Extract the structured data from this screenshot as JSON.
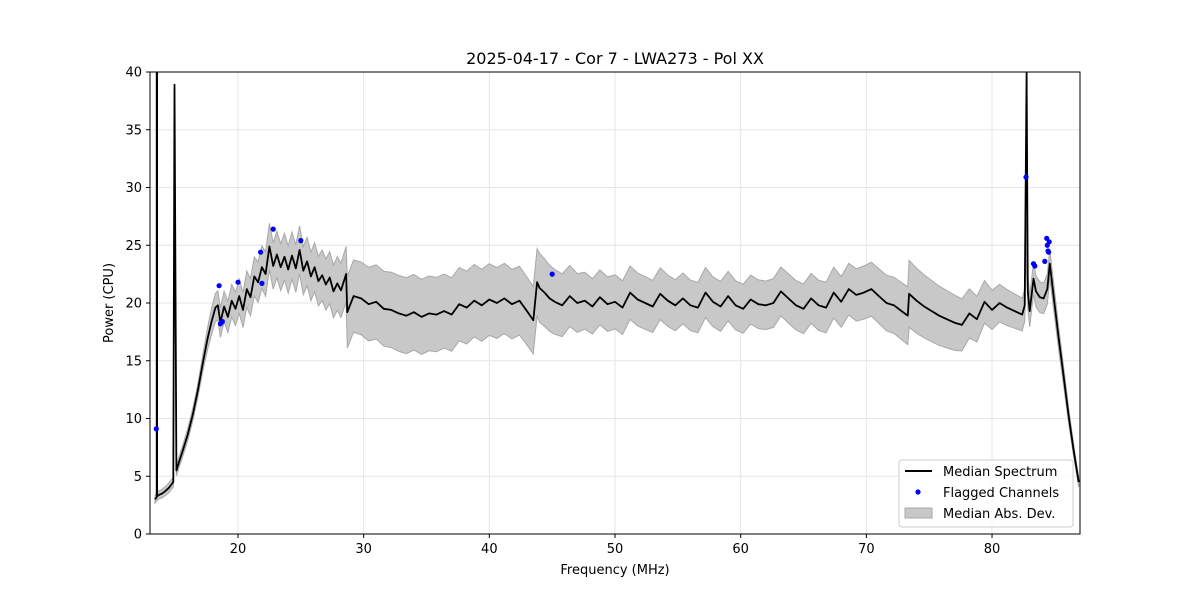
{
  "chart_data": {
    "type": "line",
    "title": "2025-04-17 - Cor 7 - LWA273 - Pol XX",
    "xlabel": "Frequency (MHz)",
    "ylabel": "Power (CPU)",
    "xlim": [
      13.0,
      87.0
    ],
    "ylim": [
      0,
      40
    ],
    "xticks": [
      20,
      30,
      40,
      50,
      60,
      70,
      80
    ],
    "xtick_labels": [
      "20",
      "30",
      "40",
      "50",
      "60",
      "70",
      "80"
    ],
    "yticks": [
      0,
      5,
      10,
      15,
      20,
      25,
      30,
      35,
      40
    ],
    "ytick_labels": [
      "0",
      "5",
      "10",
      "15",
      "20",
      "25",
      "30",
      "35",
      "40"
    ],
    "grid": true,
    "legend_position": "lower-right",
    "legend": [
      "Median Spectrum",
      "Flagged Channels",
      "Median Abs. Dev."
    ],
    "colors": {
      "median": "#000000",
      "flagged": "#0000ff",
      "mad_fill": "#c8c8c8",
      "mad_edge": "#a8a8a8",
      "grid": "#e6e6e6"
    },
    "series": [
      {
        "name": "Median Spectrum",
        "x": [
          13.4,
          13.6,
          13.75,
          13.85,
          13.95,
          14.2,
          14.5,
          14.85,
          14.95,
          15.1,
          15.3,
          15.6,
          16.0,
          16.4,
          16.8,
          17.2,
          17.6,
          17.9,
          18.2,
          18.4,
          18.6,
          18.9,
          19.2,
          19.5,
          19.8,
          20.1,
          20.4,
          20.7,
          21.0,
          21.3,
          21.6,
          21.9,
          22.2,
          22.5,
          22.8,
          23.1,
          23.4,
          23.7,
          24.0,
          24.3,
          24.6,
          24.9,
          25.2,
          25.5,
          25.8,
          26.1,
          26.4,
          26.7,
          27.0,
          27.3,
          27.6,
          27.9,
          28.2,
          28.6,
          28.7,
          29.2,
          29.8,
          30.4,
          31.0,
          31.6,
          32.2,
          32.8,
          33.4,
          34.0,
          34.6,
          35.2,
          35.8,
          36.4,
          37.0,
          37.6,
          38.2,
          38.8,
          39.4,
          40.0,
          40.6,
          41.2,
          41.8,
          42.4,
          43.0,
          43.5,
          43.8,
          44.0,
          44.4,
          44.8,
          45.2,
          45.8,
          46.4,
          47.0,
          47.6,
          48.2,
          48.8,
          49.4,
          50.0,
          50.6,
          51.2,
          51.8,
          52.4,
          53.0,
          53.6,
          54.2,
          54.8,
          55.4,
          56.0,
          56.6,
          57.2,
          57.8,
          58.4,
          59.0,
          59.6,
          60.2,
          60.8,
          61.4,
          62.0,
          62.6,
          63.2,
          63.8,
          64.4,
          65.0,
          65.6,
          66.2,
          66.8,
          67.4,
          68.0,
          68.6,
          69.2,
          69.8,
          70.4,
          71.0,
          71.6,
          72.2,
          72.8,
          73.3,
          73.4,
          74.0,
          74.6,
          75.2,
          75.8,
          76.4,
          77.0,
          77.6,
          78.2,
          78.8,
          79.4,
          80.0,
          80.6,
          81.2,
          81.8,
          82.4,
          82.6,
          82.75,
          82.85,
          83.0,
          83.3,
          83.5,
          83.8,
          84.1,
          84.4,
          84.6,
          84.9,
          85.3,
          85.7,
          86.1,
          86.5,
          86.9
        ],
        "y": [
          3.0,
          3.3,
          3.4,
          3.45,
          3.5,
          3.7,
          4.0,
          4.5,
          38.9,
          5.5,
          6.2,
          7.2,
          8.6,
          10.3,
          12.4,
          14.8,
          17.0,
          18.4,
          19.6,
          19.8,
          18.3,
          19.7,
          18.8,
          20.2,
          19.5,
          20.6,
          19.4,
          21.2,
          20.5,
          22.3,
          21.8,
          23.1,
          22.5,
          24.9,
          23.2,
          24.2,
          23.1,
          24.0,
          22.9,
          24.1,
          23.0,
          24.6,
          22.8,
          23.6,
          22.3,
          23.1,
          21.9,
          22.4,
          21.6,
          22.2,
          21.0,
          21.7,
          21.1,
          22.5,
          19.2,
          20.6,
          20.4,
          19.9,
          20.1,
          19.5,
          19.4,
          19.1,
          18.9,
          19.2,
          18.8,
          19.1,
          19.0,
          19.3,
          19.0,
          19.9,
          19.6,
          20.2,
          19.8,
          20.3,
          20.0,
          20.4,
          19.9,
          20.2,
          19.3,
          18.5,
          21.8,
          21.3,
          20.9,
          20.4,
          20.1,
          19.8,
          20.6,
          20.0,
          20.2,
          19.7,
          20.5,
          19.9,
          20.1,
          19.6,
          20.9,
          20.3,
          20.0,
          19.7,
          20.8,
          20.2,
          19.8,
          20.4,
          19.8,
          19.6,
          20.9,
          20.1,
          19.7,
          20.6,
          19.8,
          19.5,
          20.3,
          19.9,
          19.8,
          20.0,
          21.0,
          20.4,
          19.8,
          19.5,
          20.4,
          19.8,
          19.6,
          20.9,
          20.1,
          21.2,
          20.7,
          20.9,
          21.2,
          20.6,
          20.0,
          19.8,
          19.3,
          18.9,
          20.8,
          20.2,
          19.7,
          19.3,
          18.9,
          18.6,
          18.3,
          18.1,
          19.1,
          18.6,
          20.1,
          19.4,
          20.0,
          19.6,
          19.3,
          19.0,
          19.8,
          40.0,
          21.0,
          19.3,
          22.1,
          21.0,
          20.5,
          20.4,
          21.2,
          23.4,
          20.6,
          17.0,
          13.6,
          10.2,
          7.2,
          4.5
        ]
      },
      {
        "name": "Flagged Channels",
        "points": [
          [
            13.5,
            9.1
          ],
          [
            18.5,
            21.5
          ],
          [
            18.6,
            18.2
          ],
          [
            18.75,
            18.4
          ],
          [
            20.0,
            21.8
          ],
          [
            21.8,
            24.4
          ],
          [
            21.9,
            21.7
          ],
          [
            22.8,
            26.4
          ],
          [
            25.0,
            25.4
          ],
          [
            45.0,
            22.5
          ],
          [
            82.7,
            30.9
          ],
          [
            83.3,
            23.4
          ],
          [
            83.4,
            23.2
          ],
          [
            84.2,
            23.6
          ],
          [
            84.35,
            25.6
          ],
          [
            84.4,
            25.0
          ],
          [
            84.45,
            24.5
          ],
          [
            84.5,
            24.4
          ],
          [
            84.55,
            25.3
          ]
        ]
      },
      {
        "name": "Median Abs. Dev.",
        "mad_halfwidth": [
          [
            13.0,
            0.3
          ],
          [
            17.0,
            0.6
          ],
          [
            18.0,
            1.2
          ],
          [
            21.0,
            1.6
          ],
          [
            22.5,
            2.0
          ],
          [
            26.0,
            2.1
          ],
          [
            28.6,
            2.4
          ],
          [
            28.7,
            3.1
          ],
          [
            33.0,
            3.3
          ],
          [
            40.0,
            3.1
          ],
          [
            43.8,
            2.9
          ],
          [
            43.9,
            3.0
          ],
          [
            48.0,
            2.4
          ],
          [
            55.0,
            2.2
          ],
          [
            62.0,
            2.1
          ],
          [
            68.0,
            2.2
          ],
          [
            73.3,
            2.5
          ],
          [
            73.4,
            2.9
          ],
          [
            77.0,
            2.4
          ],
          [
            80.0,
            1.7
          ],
          [
            82.5,
            1.4
          ],
          [
            84.5,
            1.3
          ],
          [
            86.0,
            0.7
          ],
          [
            87.0,
            0.4
          ]
        ]
      }
    ]
  }
}
